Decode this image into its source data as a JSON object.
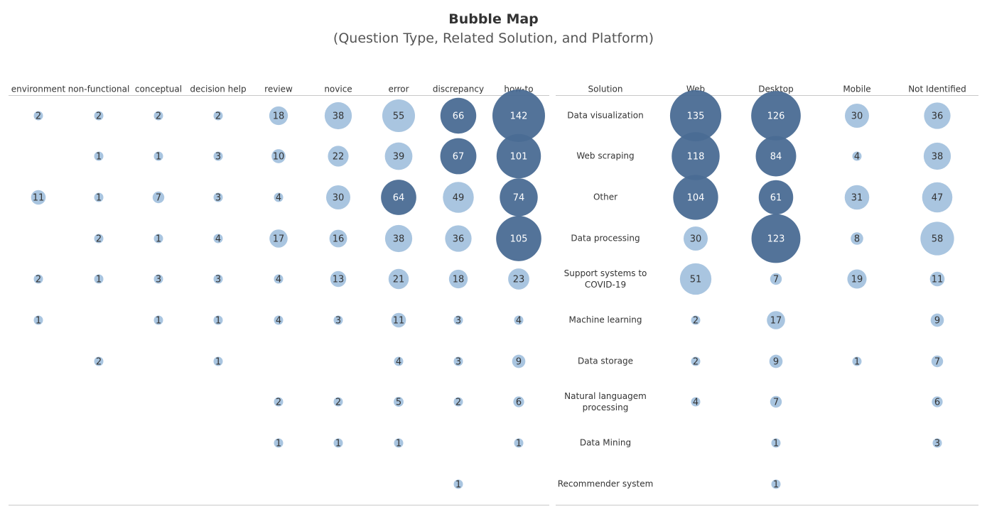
{
  "title": "Bubble Map",
  "subtitle": "(Question Type, Related Solution, and Platform)",
  "colors": {
    "light": "#a4c2de",
    "dark": "#4a6b93",
    "text_dark": "#333333",
    "text_light": "#ffffff",
    "rule": "#c8c8c8"
  },
  "chart_data": [
    {
      "type": "bubble-matrix",
      "name": "question-type",
      "columns": [
        "environment",
        "non-functional",
        "conceptual",
        "decision help",
        "review",
        "novice",
        "error",
        "discrepancy",
        "how-to"
      ],
      "rows": [
        [
          2,
          2,
          2,
          2,
          18,
          38,
          55,
          66,
          142
        ],
        [
          null,
          1,
          1,
          3,
          10,
          22,
          39,
          67,
          101
        ],
        [
          11,
          1,
          7,
          3,
          4,
          30,
          64,
          49,
          74
        ],
        [
          null,
          2,
          1,
          4,
          17,
          16,
          38,
          36,
          105
        ],
        [
          2,
          1,
          3,
          3,
          4,
          13,
          21,
          18,
          23
        ],
        [
          1,
          null,
          1,
          1,
          4,
          3,
          11,
          3,
          4
        ],
        [
          null,
          2,
          null,
          1,
          null,
          null,
          4,
          3,
          9
        ],
        [
          null,
          null,
          null,
          null,
          2,
          2,
          5,
          2,
          6
        ],
        [
          null,
          null,
          null,
          null,
          1,
          1,
          1,
          null,
          1
        ],
        [
          null,
          null,
          null,
          null,
          null,
          null,
          null,
          1,
          null
        ]
      ]
    },
    {
      "type": "bubble-matrix",
      "name": "platform",
      "row_header": "Solution",
      "columns": [
        "Web",
        "Desktop",
        "Mobile",
        "Not Identified"
      ],
      "row_labels": [
        "Data visualization",
        "Web scraping",
        "Other",
        "Data processing",
        "Support systems to COVID-19",
        "Machine learning",
        "Data storage",
        "Natural languagem processing",
        "Data Mining",
        "Recommender system"
      ],
      "rows": [
        [
          135,
          126,
          30,
          36
        ],
        [
          118,
          84,
          4,
          38
        ],
        [
          104,
          61,
          31,
          47
        ],
        [
          30,
          123,
          8,
          58
        ],
        [
          51,
          7,
          19,
          11
        ],
        [
          2,
          17,
          null,
          9
        ],
        [
          2,
          9,
          1,
          7
        ],
        [
          4,
          7,
          null,
          6
        ],
        [
          null,
          1,
          null,
          3
        ],
        [
          null,
          1,
          null,
          null
        ]
      ]
    }
  ]
}
